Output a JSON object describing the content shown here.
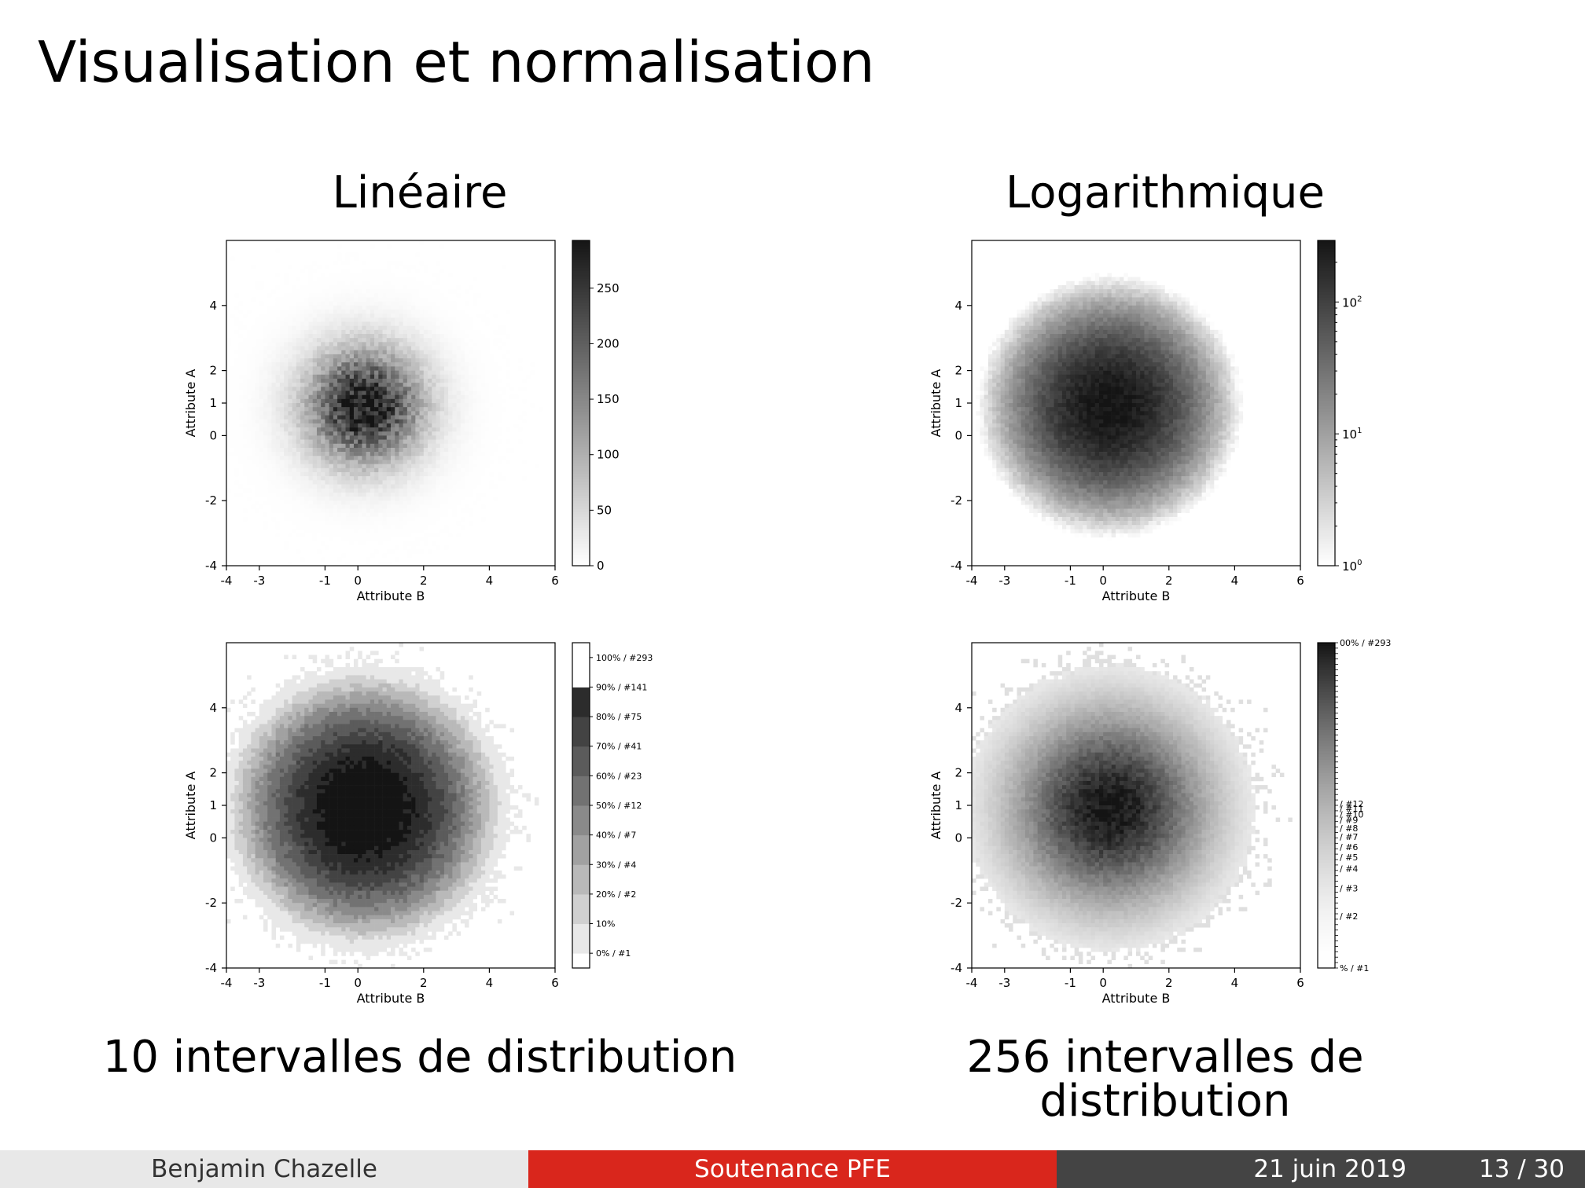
{
  "slide": {
    "title": "Visualisation et normalisation",
    "col_left_title": "Linéaire",
    "col_right_title": "Logarithmique",
    "caption_left": "10 intervalles de distribution",
    "caption_right": "256 intervalles de distribution"
  },
  "footer": {
    "author": "Benjamin Chazelle",
    "event": "Soutenance PFE",
    "date": "21 juin 2019",
    "page": "13 / 30"
  },
  "colors": {
    "footer_accent": "#d9261c",
    "footer_dark": "#444444",
    "footer_light": "#e8e8e8"
  },
  "chart_data": [
    {
      "type": "heatmap",
      "id": "linear",
      "xlabel": "Attribute B",
      "ylabel": "Attribute A",
      "x_ticks": [
        "-4",
        "-3",
        "-1",
        "0",
        "2",
        "4",
        "6"
      ],
      "y_ticks": [
        "-4",
        "-2",
        "0",
        "1",
        "2",
        "4"
      ],
      "xlim": [
        -4,
        6
      ],
      "ylim": [
        -4,
        6
      ],
      "center": [
        0.2,
        0.9
      ],
      "sigma": 1.2,
      "peak_count": 293,
      "colormap": "Greys",
      "norm": "linear",
      "colorbar": {
        "scale": "linear",
        "ticks": [
          "0",
          "50",
          "100",
          "150",
          "200",
          "250"
        ],
        "tick_values": [
          0,
          50,
          100,
          150,
          200,
          250
        ],
        "max": 293
      }
    },
    {
      "type": "heatmap",
      "id": "log",
      "xlabel": "Attribute B",
      "ylabel": "Attribute A",
      "x_ticks": [
        "-4",
        "-3",
        "-1",
        "0",
        "2",
        "4",
        "6"
      ],
      "y_ticks": [
        "-4",
        "-2",
        "0",
        "1",
        "2",
        "4"
      ],
      "xlim": [
        -4,
        6
      ],
      "ylim": [
        -4,
        6
      ],
      "center": [
        0.2,
        0.9
      ],
      "sigma": 1.2,
      "peak_count": 293,
      "colormap": "Greys",
      "norm": "log",
      "colorbar": {
        "scale": "log",
        "ticks": [
          "10",
          "10",
          "10"
        ],
        "tick_exponents": [
          "0",
          "1",
          "2"
        ],
        "tick_values": [
          1,
          10,
          100
        ],
        "max": 293
      }
    },
    {
      "type": "heatmap",
      "id": "dist10",
      "xlabel": "Attribute B",
      "ylabel": "Attribute A",
      "x_ticks": [
        "-4",
        "-3",
        "-1",
        "0",
        "2",
        "4",
        "6"
      ],
      "y_ticks": [
        "-4",
        "-2",
        "0",
        "1",
        "2",
        "4"
      ],
      "xlim": [
        -4,
        6
      ],
      "ylim": [
        -4,
        6
      ],
      "center": [
        0.2,
        0.9
      ],
      "sigma": 1.2,
      "peak_count": 293,
      "colormap": "Greys",
      "norm": "quantile-10",
      "colorbar": {
        "scale": "quantile",
        "ticks": [
          "0% / #1",
          "10%",
          "20% / #2",
          "30% / #4",
          "40% / #7",
          "50% / #12",
          "60% / #23",
          "70% / #41",
          "80% / #75",
          "90% / #141",
          "100% / #293"
        ]
      }
    },
    {
      "type": "heatmap",
      "id": "dist256",
      "xlabel": "Attribute B",
      "ylabel": "Attribute A",
      "x_ticks": [
        "-4",
        "-3",
        "-1",
        "0",
        "2",
        "4",
        "6"
      ],
      "y_ticks": [
        "-4",
        "-2",
        "0",
        "1",
        "2",
        "4"
      ],
      "xlim": [
        -4,
        6
      ],
      "ylim": [
        -4,
        6
      ],
      "center": [
        0.2,
        0.9
      ],
      "sigma": 1.2,
      "peak_count": 293,
      "colormap": "Greys",
      "norm": "quantile-256",
      "colorbar": {
        "scale": "quantile",
        "ticks": [
          "% / #1",
          "/ #2",
          "/ #3",
          "/ #4",
          "/ #5",
          "/ #6",
          "/ #7",
          "/ #8",
          "/ #9",
          "/ #10",
          "/ #11",
          "/ #12",
          "00% / #293"
        ],
        "tick_fractions": [
          0.0,
          0.16,
          0.245,
          0.305,
          0.34,
          0.372,
          0.403,
          0.43,
          0.455,
          0.472,
          0.49,
          0.505,
          1.0
        ]
      }
    }
  ]
}
